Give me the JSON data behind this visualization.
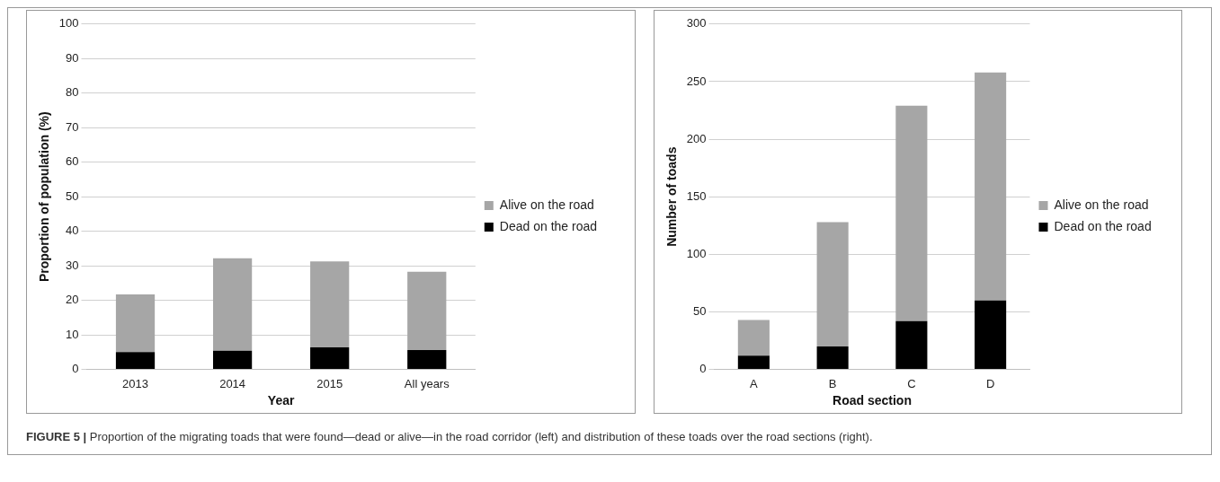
{
  "chart_data": [
    {
      "type": "bar",
      "stacked": true,
      "categories": [
        "2013",
        "2014",
        "2015",
        "All years"
      ],
      "xlabel": "Year",
      "ylabel": "Proportion of population (%)",
      "ylim": [
        0,
        100
      ],
      "yticks": [
        0,
        10,
        20,
        30,
        40,
        50,
        60,
        70,
        80,
        90,
        100
      ],
      "grid": "y",
      "legend": "right",
      "series": [
        {
          "name": "Dead on the road",
          "color": "#000000",
          "values": [
            5,
            5.4,
            6.4,
            5.6
          ]
        },
        {
          "name": "Alive on the road",
          "color": "#a6a6a6",
          "values": [
            16.7,
            26.8,
            24.9,
            22.7
          ]
        }
      ],
      "annotations": [
        "FIGURE 5 | Proportion of the migrating toads that were found—dead or alive—in the road corridor (left) and distribution of these toads over the road sections (right)."
      ]
    },
    {
      "type": "bar",
      "stacked": true,
      "categories": [
        "A",
        "B",
        "C",
        "D"
      ],
      "xlabel": "Road section",
      "ylabel": "Number of toads",
      "ylim": [
        0,
        300
      ],
      "yticks": [
        0,
        50,
        100,
        150,
        200,
        250,
        300
      ],
      "grid": "y",
      "legend": "right",
      "series": [
        {
          "name": "Dead on the road",
          "color": "#000000",
          "values": [
            12,
            20,
            42,
            60
          ]
        },
        {
          "name": "Alive on the road",
          "color": "#a6a6a6",
          "values": [
            31,
            108,
            187,
            198
          ]
        }
      ]
    }
  ]
}
